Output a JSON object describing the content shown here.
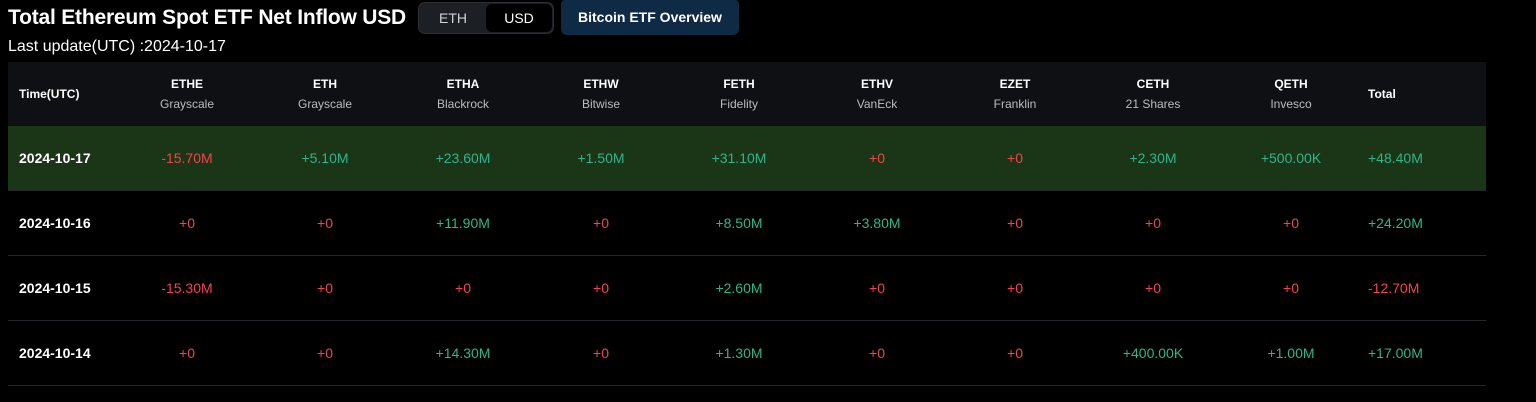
{
  "header": {
    "title": "Total Ethereum Spot ETF Net Inflow USD",
    "toggle": [
      {
        "label": "ETH",
        "active": false
      },
      {
        "label": "USD",
        "active": true
      }
    ],
    "overview_button": "Bitcoin ETF Overview"
  },
  "last_update": "Last update(UTC) :2024-10-17",
  "colors": {
    "positive": "#31b48a",
    "negative": "#f0454b",
    "highlight_row": "#1b3517",
    "overview_button_bg": "#0f2a44"
  },
  "table": {
    "time_header": "Time(UTC)",
    "total_header": "Total",
    "funds": [
      {
        "ticker": "ETHE",
        "issuer": "Grayscale"
      },
      {
        "ticker": "ETH",
        "issuer": "Grayscale"
      },
      {
        "ticker": "ETHA",
        "issuer": "Blackrock"
      },
      {
        "ticker": "ETHW",
        "issuer": "Bitwise"
      },
      {
        "ticker": "FETH",
        "issuer": "Fidelity"
      },
      {
        "ticker": "ETHV",
        "issuer": "VanEck"
      },
      {
        "ticker": "EZET",
        "issuer": "Franklin"
      },
      {
        "ticker": "CETH",
        "issuer": "21 Shares"
      },
      {
        "ticker": "QETH",
        "issuer": "Invesco"
      }
    ],
    "rows": [
      {
        "date": "2024-10-17",
        "highlight": true,
        "values": [
          "-15.70M",
          "+5.10M",
          "+23.60M",
          "+1.50M",
          "+31.10M",
          "+0",
          "+0",
          "+2.30M",
          "+500.00K"
        ],
        "total": "+48.40M"
      },
      {
        "date": "2024-10-16",
        "highlight": false,
        "values": [
          "+0",
          "+0",
          "+11.90M",
          "+0",
          "+8.50M",
          "+3.80M",
          "+0",
          "+0",
          "+0"
        ],
        "total": "+24.20M"
      },
      {
        "date": "2024-10-15",
        "highlight": false,
        "values": [
          "-15.30M",
          "+0",
          "+0",
          "+0",
          "+2.60M",
          "+0",
          "+0",
          "+0",
          "+0"
        ],
        "total": "-12.70M"
      },
      {
        "date": "2024-10-14",
        "highlight": false,
        "values": [
          "+0",
          "+0",
          "+14.30M",
          "+0",
          "+1.30M",
          "+0",
          "+0",
          "+400.00K",
          "+1.00M"
        ],
        "total": "+17.00M"
      }
    ]
  }
}
